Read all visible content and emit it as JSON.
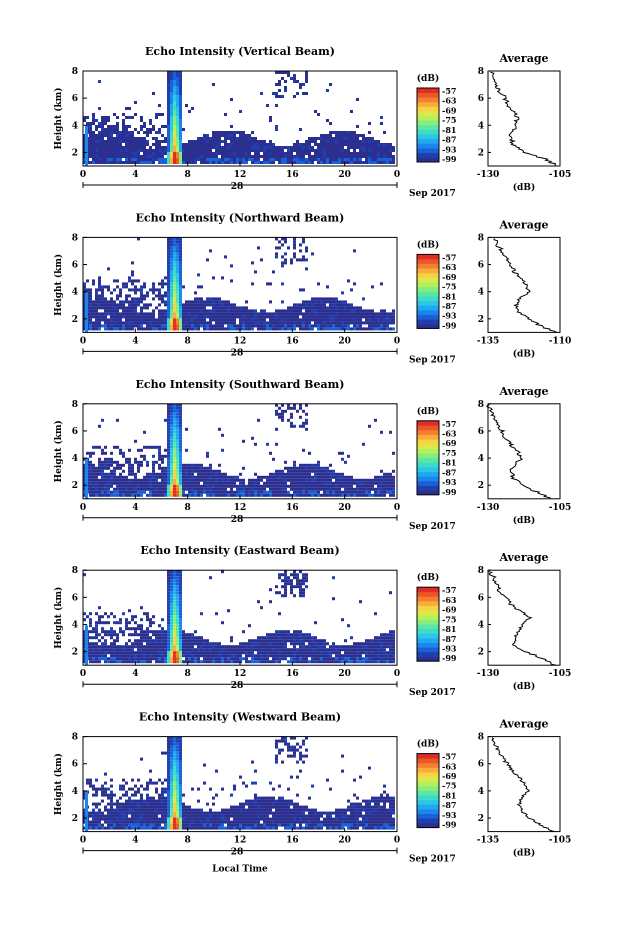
{
  "figure": {
    "xaxis_title": "Local Time",
    "date_label": "Sep 2017",
    "date_marker": "28",
    "avg_xlabel": "(dB)",
    "colorbar_label": "(dB)"
  },
  "colorbar": {
    "ticks": [
      "-57",
      "-63",
      "-69",
      "-75",
      "-81",
      "-87",
      "-93",
      "-99"
    ],
    "colors": [
      "#2b2f8f",
      "#1f3fb0",
      "#1a61d6",
      "#1a86ee",
      "#20a9f0",
      "#2cc7e4",
      "#3ddbc9",
      "#5be6a4",
      "#86ee7c",
      "#b4f05a",
      "#dde84a",
      "#f7d243",
      "#fbab3a",
      "#f57f31",
      "#ec5629",
      "#de2d22"
    ]
  },
  "chart_data": [
    {
      "type": "heatmap",
      "title": "Echo Intensity (Vertical Beam)",
      "ylabel": "Height (km)",
      "xlabel": "",
      "xticks": [
        "0",
        "4",
        "8",
        "12",
        "16",
        "20",
        "0"
      ],
      "yticks": [
        "2",
        "4",
        "6",
        "8"
      ],
      "xlim": [
        0,
        24
      ],
      "ylim": [
        1,
        8
      ],
      "avg_profile": {
        "title": "Average",
        "xticks": [
          "-130",
          "-105"
        ],
        "xlim": [
          -130,
          -105
        ],
        "yticks": [
          "2",
          "4",
          "6",
          "8"
        ],
        "ylim": [
          1,
          8
        ],
        "height_km": [
          1.0,
          1.5,
          2.0,
          2.5,
          3.0,
          3.5,
          4.0,
          4.5,
          5.0,
          5.5,
          6.0,
          6.5,
          7.0,
          7.5,
          8.0
        ],
        "value_db": [
          -106,
          -110,
          -117,
          -121,
          -122,
          -122,
          -120,
          -120,
          -121,
          -123,
          -124,
          -126,
          -127,
          -128,
          -129
        ]
      }
    },
    {
      "type": "heatmap",
      "title": "Echo Intensity (Northward Beam)",
      "ylabel": "Height (km)",
      "xlabel": "",
      "xticks": [
        "0",
        "4",
        "8",
        "12",
        "16",
        "20",
        "0"
      ],
      "yticks": [
        "2",
        "4",
        "6",
        "8"
      ],
      "xlim": [
        0,
        24
      ],
      "ylim": [
        1,
        8
      ],
      "avg_profile": {
        "title": "Average",
        "xticks": [
          "-135",
          "-110"
        ],
        "xlim": [
          -135,
          -110
        ],
        "yticks": [
          "2",
          "4",
          "6",
          "8"
        ],
        "ylim": [
          1,
          8
        ],
        "height_km": [
          1.0,
          1.5,
          2.0,
          2.5,
          3.0,
          3.5,
          4.0,
          4.5,
          5.0,
          5.5,
          6.0,
          6.5,
          7.0,
          7.5,
          8.0
        ],
        "value_db": [
          -111,
          -117,
          -121,
          -124,
          -125,
          -124,
          -120,
          -122,
          -124,
          -126,
          -127,
          -129,
          -130,
          -132,
          -133
        ]
      }
    },
    {
      "type": "heatmap",
      "title": "Echo Intensity (Southward Beam)",
      "ylabel": "Height (km)",
      "xlabel": "",
      "xticks": [
        "0",
        "4",
        "8",
        "12",
        "16",
        "20",
        "0"
      ],
      "yticks": [
        "2",
        "4",
        "6",
        "8"
      ],
      "xlim": [
        0,
        24
      ],
      "ylim": [
        1,
        8
      ],
      "avg_profile": {
        "title": "Average",
        "xticks": [
          "-130",
          "-105"
        ],
        "xlim": [
          -130,
          -105
        ],
        "yticks": [
          "2",
          "4",
          "6",
          "8"
        ],
        "ylim": [
          1,
          8
        ],
        "height_km": [
          1.0,
          1.5,
          2.0,
          2.5,
          3.0,
          3.5,
          4.0,
          4.5,
          5.0,
          5.5,
          6.0,
          6.5,
          7.0,
          7.5,
          8.0
        ],
        "value_db": [
          -108,
          -113,
          -118,
          -121,
          -122,
          -121,
          -118,
          -120,
          -122,
          -124,
          -125,
          -127,
          -128,
          -129,
          -130
        ]
      }
    },
    {
      "type": "heatmap",
      "title": "Echo Intensity (Eastward Beam)",
      "ylabel": "Height (km)",
      "xlabel": "",
      "xticks": [
        "0",
        "4",
        "8",
        "12",
        "16",
        "20",
        "0"
      ],
      "yticks": [
        "2",
        "4",
        "6",
        "8"
      ],
      "xlim": [
        0,
        24
      ],
      "ylim": [
        1,
        8
      ],
      "avg_profile": {
        "title": "Average",
        "xticks": [
          "-130",
          "-105"
        ],
        "xlim": [
          -130,
          -105
        ],
        "yticks": [
          "2",
          "4",
          "6",
          "8"
        ],
        "ylim": [
          1,
          8
        ],
        "height_km": [
          1.0,
          1.5,
          2.0,
          2.5,
          3.0,
          3.5,
          4.0,
          4.5,
          5.0,
          5.5,
          6.0,
          6.5,
          7.0,
          7.5,
          8.0
        ],
        "value_db": [
          -107,
          -111,
          -117,
          -121,
          -121,
          -119,
          -118,
          -115,
          -119,
          -122,
          -124,
          -126,
          -127,
          -128,
          -130
        ]
      }
    },
    {
      "type": "heatmap",
      "title": "Echo Intensity (Westward Beam)",
      "ylabel": "Height (km)",
      "xlabel": "Local Time",
      "xticks": [
        "0",
        "4",
        "8",
        "12",
        "16",
        "20",
        "0"
      ],
      "yticks": [
        "2",
        "4",
        "6",
        "8"
      ],
      "xlim": [
        0,
        24
      ],
      "ylim": [
        1,
        8
      ],
      "avg_profile": {
        "title": "Average",
        "xticks": [
          "-135",
          "-105"
        ],
        "xlim": [
          -135,
          -105
        ],
        "yticks": [
          "2",
          "4",
          "6",
          "8"
        ],
        "ylim": [
          1,
          8
        ],
        "height_km": [
          1.0,
          1.5,
          2.0,
          2.5,
          3.0,
          3.5,
          4.0,
          4.5,
          5.0,
          5.5,
          6.0,
          6.5,
          7.0,
          7.5,
          8.0
        ],
        "value_db": [
          -108,
          -113,
          -118,
          -121,
          -122,
          -121,
          -118,
          -120,
          -122,
          -125,
          -127,
          -129,
          -131,
          -132,
          -134
        ]
      }
    }
  ]
}
